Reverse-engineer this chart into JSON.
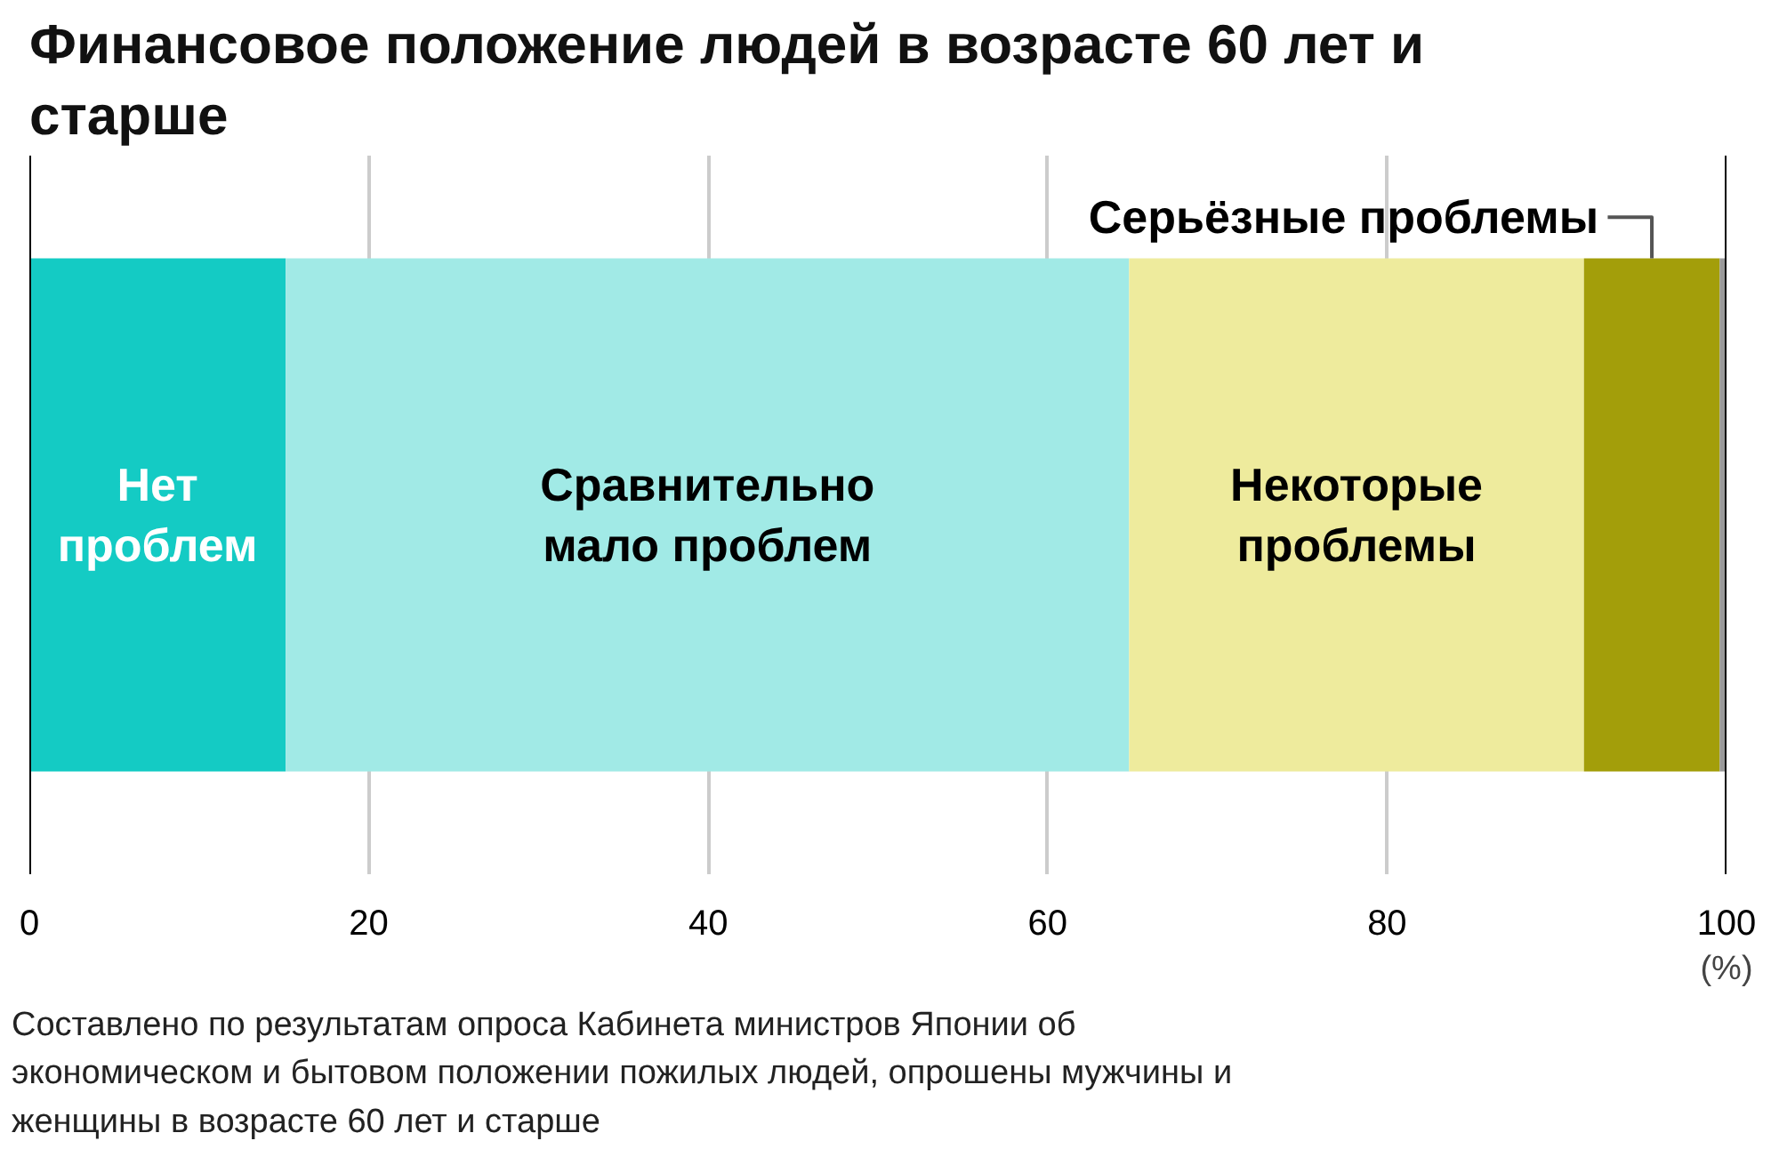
{
  "chart_data": {
    "type": "bar",
    "orientation": "horizontal",
    "stacked": true,
    "title": "Финансовое положение людей в возрасте 60 лет и старше",
    "categories": [
      null
    ],
    "series": [
      {
        "name": "Нет проблем",
        "color": "#14cbc4",
        "values": [
          15.1
        ]
      },
      {
        "name": "Сравнительно мало проблем",
        "color": "#a1eae6",
        "values": [
          49.7
        ]
      },
      {
        "name": "Некоторые проблемы",
        "color": "#eeeb9d",
        "values": [
          26.8
        ]
      },
      {
        "name": "Серьёзные проблемы",
        "color": "#a39e0a",
        "values": [
          8.0
        ]
      },
      {
        "color": "#9a9a9a",
        "values": [
          0.4
        ]
      }
    ],
    "xlim": [
      0,
      100
    ],
    "xticks": [
      0,
      20,
      40,
      60,
      80,
      100
    ],
    "xlabel": "(%)",
    "grid": "x",
    "annotations": [
      "Составлено по результатам опроса Кабинета министров Японии об экономическом и бытовом положении пожилых людей, опрошены мужчины и женщины в возрасте 60 лет и старше"
    ]
  }
}
